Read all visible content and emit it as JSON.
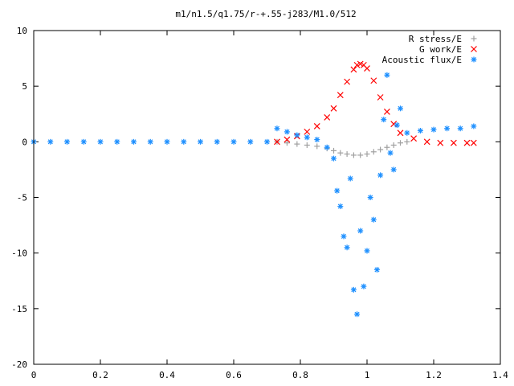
{
  "chart_data": {
    "type": "scatter",
    "title": "m1/n1.5/q1.75/r-+.55-j283/M1.0/512",
    "xlabel": "",
    "ylabel": "",
    "xlim": [
      0,
      1.4
    ],
    "ylim": [
      -20,
      10
    ],
    "x_ticks": [
      0,
      0.2,
      0.4,
      0.6,
      0.8,
      1,
      1.2,
      1.4
    ],
    "y_ticks": [
      10,
      5,
      0,
      -5,
      -10,
      -15,
      -20
    ],
    "x_tick_labels": [
      "0",
      "0.2",
      "0.4",
      "0.6",
      "0.8",
      "1",
      "1.2",
      "1.4"
    ],
    "y_tick_labels": [
      "10",
      "5",
      "0",
      "-5",
      "-10",
      "-15",
      "-20"
    ],
    "grid": false,
    "legend_position": "top-right",
    "series": [
      {
        "name": "R stress/E",
        "marker": "plus",
        "color": "#a0a0a0",
        "x": [
          0.73,
          0.76,
          0.79,
          0.82,
          0.85,
          0.88,
          0.9,
          0.92,
          0.94,
          0.96,
          0.98,
          1.0,
          1.02,
          1.04,
          1.06,
          1.08,
          1.1,
          1.12
        ],
        "y": [
          0.0,
          -0.1,
          -0.2,
          -0.3,
          -0.4,
          -0.6,
          -0.8,
          -1.0,
          -1.1,
          -1.2,
          -1.2,
          -1.1,
          -0.9,
          -0.7,
          -0.5,
          -0.3,
          -0.1,
          0.0
        ]
      },
      {
        "name": "G work/E",
        "marker": "cross",
        "color": "#ff0000",
        "x": [
          0.73,
          0.76,
          0.79,
          0.82,
          0.85,
          0.88,
          0.9,
          0.92,
          0.94,
          0.96,
          0.97,
          0.98,
          0.99,
          1.0,
          1.02,
          1.04,
          1.06,
          1.08,
          1.1,
          1.14,
          1.18,
          1.22,
          1.26,
          1.3,
          1.32
        ],
        "y": [
          0.0,
          0.2,
          0.5,
          0.9,
          1.4,
          2.2,
          3.0,
          4.2,
          5.4,
          6.5,
          6.9,
          7.0,
          6.9,
          6.6,
          5.5,
          4.0,
          2.7,
          1.6,
          0.8,
          0.3,
          0.0,
          -0.1,
          -0.1,
          -0.1,
          -0.1
        ]
      },
      {
        "name": "Acoustic flux/E",
        "marker": "star",
        "color": "#1e90ff",
        "x": [
          0.0,
          0.05,
          0.1,
          0.15,
          0.2,
          0.25,
          0.3,
          0.35,
          0.4,
          0.45,
          0.5,
          0.55,
          0.6,
          0.65,
          0.7,
          0.73,
          0.76,
          0.79,
          0.82,
          0.85,
          0.88,
          0.9,
          0.91,
          0.92,
          0.93,
          0.94,
          0.95,
          0.96,
          0.97,
          0.98,
          0.99,
          1.0,
          1.01,
          1.02,
          1.03,
          1.04,
          1.05,
          1.06,
          1.07,
          1.08,
          1.09,
          1.1,
          1.12,
          1.16,
          1.2,
          1.24,
          1.28,
          1.32
        ],
        "y": [
          0.0,
          0.0,
          0.0,
          0.0,
          0.0,
          0.0,
          0.0,
          0.0,
          0.0,
          0.0,
          0.0,
          0.0,
          0.0,
          0.0,
          0.0,
          1.2,
          0.9,
          0.6,
          0.4,
          0.2,
          -0.5,
          -1.5,
          -4.4,
          -5.8,
          -8.5,
          -9.5,
          -3.3,
          -13.3,
          -15.5,
          -8.0,
          -13.0,
          -9.8,
          -5.0,
          -7.0,
          -11.5,
          -3.0,
          2.0,
          6.0,
          -1.0,
          -2.5,
          1.5,
          3.0,
          0.8,
          1.0,
          1.1,
          1.2,
          1.2,
          1.4
        ]
      }
    ]
  }
}
